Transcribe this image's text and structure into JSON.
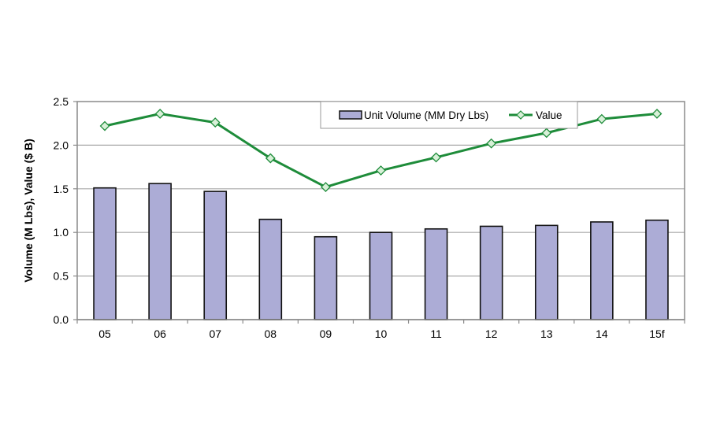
{
  "chart_data": {
    "type": "bar+line",
    "title": "",
    "xlabel": "",
    "ylabel": "Volume (M Lbs), Value ($ B)",
    "ylim": [
      0,
      2.5
    ],
    "yticks": [
      "0.0",
      "0.5",
      "1.0",
      "1.5",
      "2.0",
      "2.5"
    ],
    "grid": true,
    "legend_position": "top-center inside plot",
    "categories": [
      "05",
      "06",
      "07",
      "08",
      "09",
      "10",
      "11",
      "12",
      "13",
      "14",
      "15f"
    ],
    "series": [
      {
        "name": "Unit Volume (MM Dry Lbs)",
        "type": "bar",
        "color": "#acacd6",
        "values": [
          1.51,
          1.56,
          1.47,
          1.15,
          0.95,
          1.0,
          1.04,
          1.07,
          1.08,
          1.12,
          1.14
        ]
      },
      {
        "name": "Value",
        "type": "line",
        "color": "#1e8c3a",
        "marker": "diamond",
        "values": [
          2.22,
          2.36,
          2.26,
          1.85,
          1.52,
          1.71,
          1.86,
          2.02,
          2.14,
          2.3,
          2.36
        ]
      }
    ]
  },
  "legend": {
    "bar_label": "Unit Volume (MM Dry Lbs)",
    "line_label": "Value"
  },
  "axis": {
    "ylabel": "Volume (M Lbs), Value ($ B)"
  }
}
